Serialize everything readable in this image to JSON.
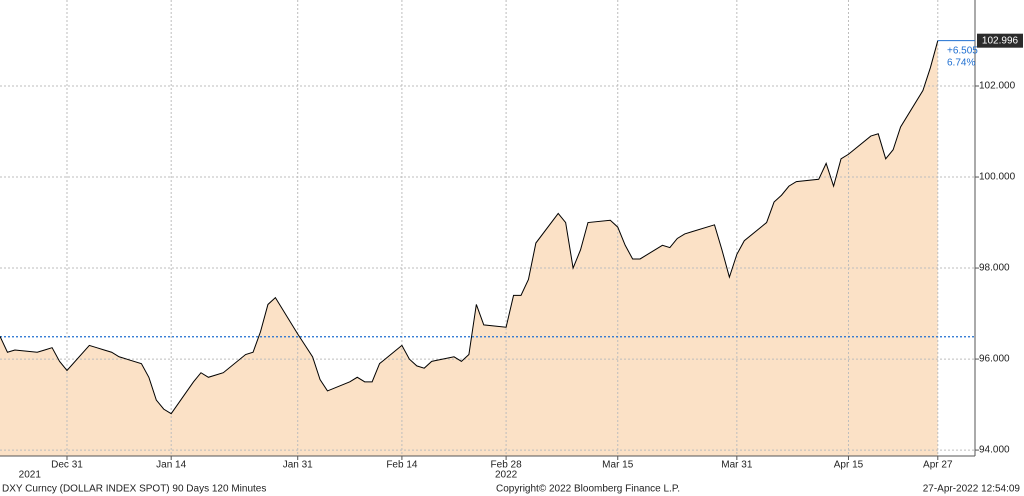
{
  "chart_data": {
    "type": "area",
    "xlim": [
      "2021-12-22",
      "2022-05-02"
    ],
    "ylim": [
      93.87,
      103.89
    ],
    "grid": true,
    "xticks": [
      {
        "value": "2021-12-31",
        "label": "Dec 31"
      },
      {
        "value": "2022-01-14",
        "label": "Jan 14"
      },
      {
        "value": "2022-01-31",
        "label": "Jan 31"
      },
      {
        "value": "2022-02-14",
        "label": "Feb 14"
      },
      {
        "value": "2022-02-28",
        "label": "Feb 28"
      },
      {
        "value": "2022-03-15",
        "label": "Mar 15"
      },
      {
        "value": "2022-03-31",
        "label": "Mar 31"
      },
      {
        "value": "2022-04-15",
        "label": "Apr 15"
      },
      {
        "value": "2022-04-27",
        "label": "Apr 27"
      }
    ],
    "year_labels": [
      {
        "value": "2021-12-26",
        "label": "2021"
      },
      {
        "value": "2022-02-28",
        "label": "2022"
      }
    ],
    "yticks": [
      {
        "value": 94,
        "label": "94.000"
      },
      {
        "value": 96,
        "label": "96.000"
      },
      {
        "value": 98,
        "label": "98.000"
      },
      {
        "value": 100,
        "label": "100.000"
      },
      {
        "value": 102,
        "label": "102.000"
      }
    ],
    "baseline": 96.491,
    "baseline_color": "#1f6fd1",
    "change": {
      "value": 6.505,
      "label": "+6.505"
    },
    "change_pct": {
      "value": 6.74,
      "label": "6.74%"
    },
    "x": [
      "2021-12-22",
      "2021-12-23",
      "2021-12-24",
      "2021-12-27",
      "2021-12-28",
      "2021-12-29",
      "2021-12-30",
      "2021-12-31",
      "2022-01-03",
      "2022-01-04",
      "2022-01-05",
      "2022-01-06",
      "2022-01-07",
      "2022-01-10",
      "2022-01-11",
      "2022-01-12",
      "2022-01-13",
      "2022-01-14",
      "2022-01-17",
      "2022-01-18",
      "2022-01-19",
      "2022-01-20",
      "2022-01-21",
      "2022-01-24",
      "2022-01-25",
      "2022-01-26",
      "2022-01-27",
      "2022-01-28",
      "2022-01-31",
      "2022-02-01",
      "2022-02-02",
      "2022-02-03",
      "2022-02-04",
      "2022-02-07",
      "2022-02-08",
      "2022-02-09",
      "2022-02-10",
      "2022-02-11",
      "2022-02-14",
      "2022-02-15",
      "2022-02-16",
      "2022-02-17",
      "2022-02-18",
      "2022-02-21",
      "2022-02-22",
      "2022-02-23",
      "2022-02-24",
      "2022-02-25",
      "2022-02-28",
      "2022-03-01",
      "2022-03-02",
      "2022-03-03",
      "2022-03-04",
      "2022-03-07",
      "2022-03-08",
      "2022-03-09",
      "2022-03-10",
      "2022-03-11",
      "2022-03-14",
      "2022-03-15",
      "2022-03-16",
      "2022-03-17",
      "2022-03-18",
      "2022-03-21",
      "2022-03-22",
      "2022-03-23",
      "2022-03-24",
      "2022-03-25",
      "2022-03-28",
      "2022-03-29",
      "2022-03-30",
      "2022-03-31",
      "2022-04-01",
      "2022-04-04",
      "2022-04-05",
      "2022-04-06",
      "2022-04-07",
      "2022-04-08",
      "2022-04-11",
      "2022-04-12",
      "2022-04-13",
      "2022-04-14",
      "2022-04-15",
      "2022-04-18",
      "2022-04-19",
      "2022-04-20",
      "2022-04-21",
      "2022-04-22",
      "2022-04-25",
      "2022-04-26",
      "2022-04-27"
    ],
    "series": [
      {
        "color": "#000000",
        "fill": "#fbe1c6",
        "values": [
          96.5,
          96.15,
          96.2,
          96.15,
          96.2,
          96.25,
          95.95,
          95.75,
          96.3,
          96.25,
          96.2,
          96.15,
          96.05,
          95.9,
          95.6,
          95.1,
          94.9,
          94.8,
          95.5,
          95.7,
          95.6,
          95.65,
          95.7,
          96.1,
          96.15,
          96.6,
          97.2,
          97.35,
          96.55,
          96.3,
          96.05,
          95.55,
          95.3,
          95.5,
          95.6,
          95.5,
          95.5,
          95.9,
          96.3,
          96.0,
          95.85,
          95.8,
          95.95,
          96.05,
          95.95,
          96.1,
          97.2,
          96.75,
          96.7,
          97.4,
          97.4,
          97.75,
          98.55,
          99.2,
          99.0,
          98.0,
          98.4,
          99.0,
          99.05,
          98.9,
          98.5,
          98.2,
          98.2,
          98.5,
          98.45,
          98.65,
          98.75,
          98.8,
          98.95,
          98.4,
          97.8,
          98.3,
          98.6,
          99.0,
          99.45,
          99.6,
          99.8,
          99.9,
          99.95,
          100.3,
          99.8,
          100.4,
          100.5,
          100.9,
          100.95,
          100.4,
          100.6,
          101.1,
          101.9,
          102.4,
          102.996
        ]
      }
    ],
    "footer_left": "DXY Curncy (DOLLAR INDEX SPOT) 90 Days 120 Minutes",
    "footer_center": "Copyright© 2022 Bloomberg Finance L.P.",
    "footer_right": "27-Apr-2022 12:54:09"
  }
}
